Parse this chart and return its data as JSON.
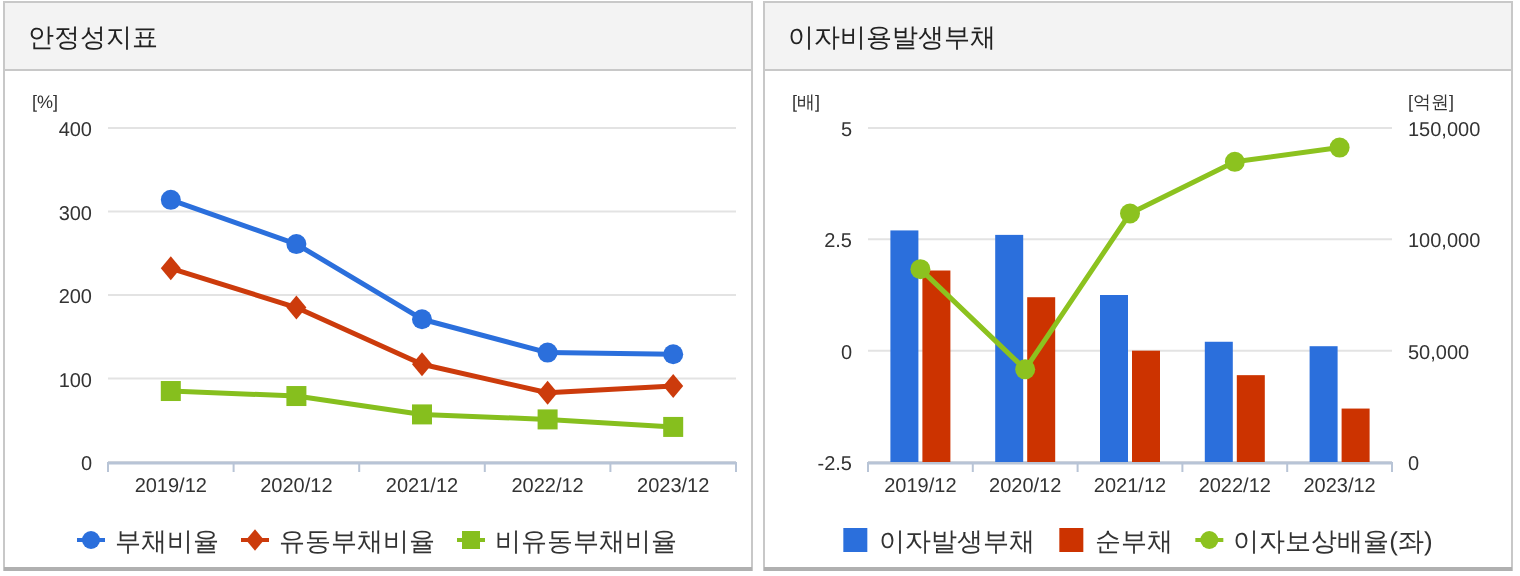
{
  "chart_data": [
    {
      "type": "line",
      "title": "안정성지표",
      "ylabel": "[%]",
      "categories": [
        "2019/12",
        "2020/12",
        "2021/12",
        "2022/12",
        "2023/12"
      ],
      "ylim": [
        0,
        400
      ],
      "yticks": [
        0,
        100,
        200,
        300,
        400
      ],
      "grid": "y",
      "legend": "bottom",
      "series": [
        {
          "name": "부채비율",
          "color": "#2b6fdc",
          "marker": "circle",
          "values": [
            314,
            261,
            171,
            131,
            129
          ]
        },
        {
          "name": "유동부채비율",
          "color": "#cc3b0c",
          "marker": "diamond",
          "values": [
            232,
            185,
            117,
            83,
            91
          ]
        },
        {
          "name": "비유동부채비율",
          "color": "#86bf1e",
          "marker": "square",
          "values": [
            85,
            79,
            57,
            51,
            42
          ]
        }
      ]
    },
    {
      "type": "bar",
      "title": "이자비용발생부채",
      "ylabel": "[배]",
      "y2label": "[억원]",
      "categories": [
        "2019/12",
        "2020/12",
        "2021/12",
        "2022/12",
        "2023/12"
      ],
      "ylim": [
        -2.5,
        5
      ],
      "yticks": [
        -2.5,
        0,
        2.5,
        5
      ],
      "y2lim": [
        0,
        150000
      ],
      "y2ticks": [
        0,
        {
          "value": 50000,
          "label": "50,000"
        },
        {
          "value": 100000,
          "label": "100,000"
        },
        {
          "value": 150000,
          "label": "150,000"
        }
      ],
      "grid": "y",
      "legend": "bottom",
      "series": [
        {
          "name": "이자발생부채",
          "axis": "y2",
          "color": "#2b6fdc",
          "values": [
            104000,
            102000,
            75000,
            54000,
            52000
          ]
        },
        {
          "name": "순부채",
          "axis": "y2",
          "color": "#cc3300",
          "values": [
            86000,
            74000,
            50000,
            39000,
            24000
          ]
        },
        {
          "name": "이자보상배율(좌)",
          "type": "line",
          "axis": "y",
          "color": "#8cc21f",
          "marker": "circle",
          "values": [
            1.83,
            -0.42,
            3.08,
            4.24,
            4.56
          ]
        }
      ]
    }
  ]
}
